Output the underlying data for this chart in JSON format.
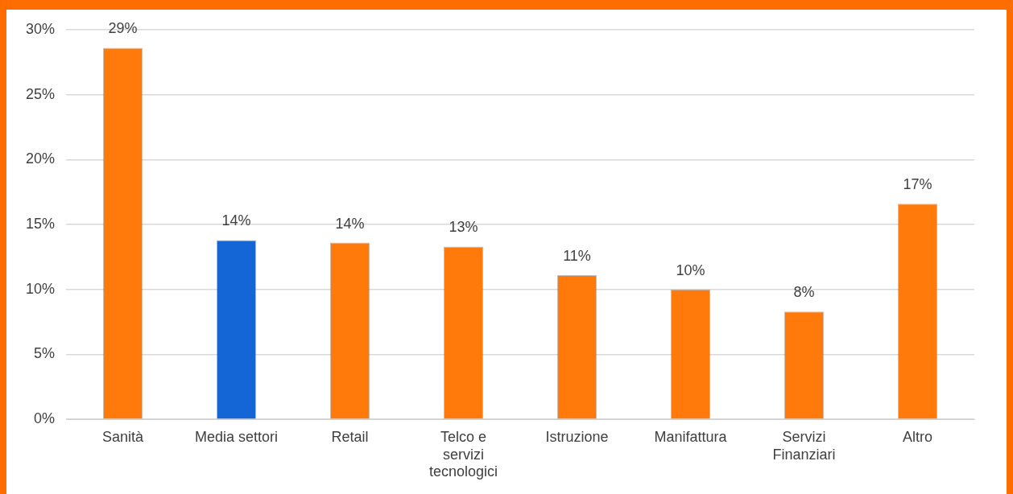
{
  "chart_data": {
    "type": "bar",
    "categories": [
      "Sanità",
      "Media settori",
      "Retail",
      "Telco e servizi tecnologici",
      "Istruzione",
      "Manifattura",
      "Servizi Finanziari",
      "Altro"
    ],
    "values": [
      28.6,
      13.8,
      13.6,
      13.3,
      11.1,
      10.0,
      8.3,
      16.6
    ],
    "value_labels": [
      "29%",
      "14%",
      "14%",
      "13%",
      "11%",
      "10%",
      "8%",
      "17%"
    ],
    "colors": [
      "#ff7a0a",
      "#1466d6",
      "#ff7a0a",
      "#ff7a0a",
      "#ff7a0a",
      "#ff7a0a",
      "#ff7a0a",
      "#ff7a0a"
    ],
    "ylim": [
      0,
      30
    ],
    "yticks": [
      {
        "value": 0,
        "label": "0%"
      },
      {
        "value": 5,
        "label": "5%"
      },
      {
        "value": 10,
        "label": "10%"
      },
      {
        "value": 15,
        "label": "15%"
      },
      {
        "value": 20,
        "label": "20%"
      },
      {
        "value": 25,
        "label": "25%"
      },
      {
        "value": 30,
        "label": "30%"
      }
    ],
    "grid": "y"
  }
}
